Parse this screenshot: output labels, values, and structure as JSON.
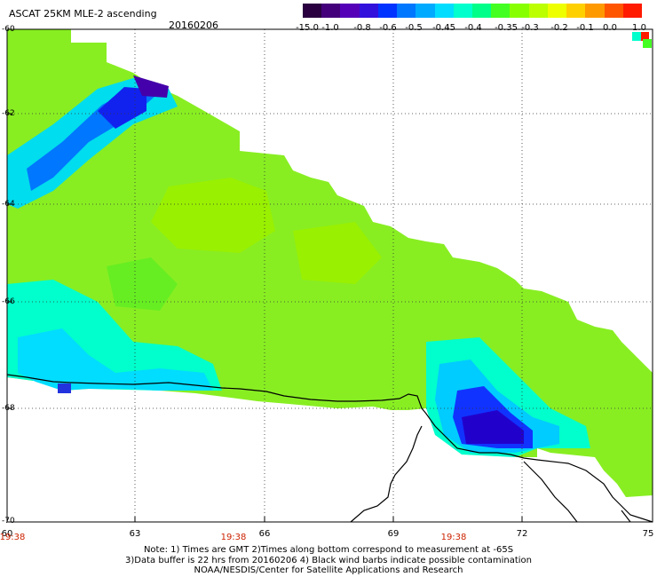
{
  "header": {
    "title": "ASCAT 25KM MLE-2 ascending",
    "date": "20160206"
  },
  "colorbar": {
    "labels": [
      "-15.0",
      "-1.0",
      "-0.8",
      "-0.6",
      "-0.5",
      "-0.45",
      "-0.4",
      "-0.35",
      "-0.3",
      "-0.2",
      "-0.1",
      "0.0",
      "1.0"
    ],
    "colors": [
      "#2a0040",
      "#44007a",
      "#5500b8",
      "#3311dd",
      "#0033ff",
      "#0077ff",
      "#00aaff",
      "#00ddff",
      "#00ffcc",
      "#00ff88",
      "#44ff22",
      "#88ff00",
      "#bbff00",
      "#eeff00",
      "#ffd000",
      "#ff9900",
      "#ff5500",
      "#ff1a00"
    ]
  },
  "axes": {
    "lat_labels": [
      "-60",
      "-62",
      "-64",
      "-66",
      "-68",
      "-70"
    ],
    "lon_labels": [
      "60",
      "63",
      "66",
      "69",
      "72",
      "75"
    ]
  },
  "times": [
    "19:38",
    "19:38",
    "19:38"
  ],
  "notes": {
    "line1": "Note: 1) Times are GMT 2)Times along bottom correspond to measurement at -65S",
    "line2": "3)Data buffer is 22 hrs from 20160206 4) Black wind barbs indicate possible contamination",
    "line3": "NOAA/NESDIS/Center for Satellite Applications and Research"
  }
}
